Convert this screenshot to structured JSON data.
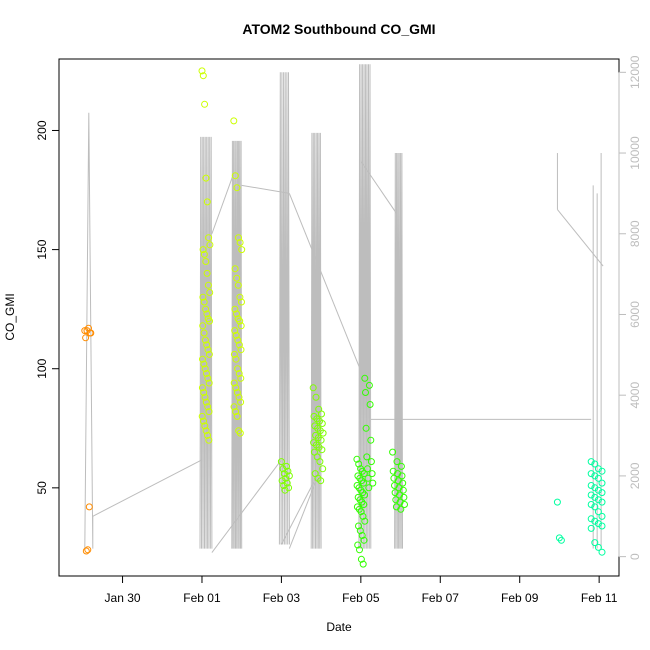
{
  "chart_data": {
    "type": "scatter",
    "title": "ATOM2 Southbound CO_GMI",
    "xlabel": "Date",
    "ylabel": "CO_GMI",
    "x_axis": {
      "ticks": [
        {
          "label": "Jan 30",
          "day": 30.0
        },
        {
          "label": "Feb 01",
          "day": 32.0
        },
        {
          "label": "Feb 03",
          "day": 34.0
        },
        {
          "label": "Feb 05",
          "day": 36.0
        },
        {
          "label": "Feb 07",
          "day": 38.0
        },
        {
          "label": "Feb 09",
          "day": 40.0
        },
        {
          "label": "Feb 11",
          "day": 42.0
        }
      ]
    },
    "y_left": {
      "ticks": [
        50,
        100,
        150,
        200
      ],
      "range": [
        13,
        230
      ]
    },
    "y_right": {
      "ticks": [
        0,
        2000,
        4000,
        6000,
        8000,
        10000,
        12000
      ],
      "range": [
        -480,
        12330
      ],
      "color": "#bdbdbd"
    },
    "groups": [
      {
        "color": "#ff8c00",
        "x_range": [
          29.05,
          29.2
        ],
        "values": [
          116,
          115,
          117,
          116,
          113,
          115,
          42,
          24,
          23.5
        ]
      },
      {
        "color": "#ccff00",
        "x_range": [
          32.0,
          32.2
        ],
        "values": [
          225,
          223,
          211,
          180,
          170,
          155,
          152,
          150,
          148,
          145,
          140,
          135,
          132,
          130,
          128,
          125,
          123,
          121,
          120,
          118,
          115,
          112,
          110,
          108,
          106,
          104,
          102,
          100,
          98,
          96,
          94,
          92,
          90,
          88,
          86,
          84,
          82,
          80,
          78,
          76,
          74,
          72,
          70
        ]
      },
      {
        "color": "#ccff00",
        "x_range": [
          32.8,
          33.0
        ],
        "values": [
          204,
          181,
          176,
          155,
          153,
          150,
          142,
          138,
          135,
          130,
          128,
          125,
          123,
          121,
          120,
          118,
          116,
          114,
          112,
          110,
          108,
          106,
          104,
          100,
          98,
          96,
          94,
          92,
          90,
          88,
          86,
          84,
          82,
          80,
          74,
          73
        ]
      },
      {
        "color": "#7fff00",
        "x_range": [
          34.0,
          34.2
        ],
        "values": [
          61,
          59,
          58,
          57,
          56,
          55,
          54,
          53,
          52,
          51,
          50,
          49
        ]
      },
      {
        "color": "#7fff00",
        "x_range": [
          34.8,
          35.05
        ],
        "values": [
          92,
          88,
          83,
          81,
          80,
          79,
          78,
          77,
          76,
          75,
          74,
          73,
          72,
          71,
          70,
          69,
          68,
          67,
          66,
          65,
          63,
          61,
          58,
          56,
          54,
          53
        ]
      },
      {
        "color": "#32ff00",
        "x_range": [
          35.9,
          36.1
        ],
        "values": [
          62,
          60,
          58,
          57,
          56,
          55,
          54,
          53,
          52,
          51,
          50,
          49,
          48,
          47,
          46,
          45,
          44,
          43,
          42,
          41,
          40,
          38,
          36,
          34,
          32,
          30,
          28,
          26,
          24,
          20,
          18
        ]
      },
      {
        "color": "#32ff00",
        "x_range": [
          36.1,
          36.3
        ],
        "values": [
          96,
          93,
          90,
          85,
          75,
          70,
          63,
          61,
          58,
          56,
          54,
          52,
          50
        ]
      },
      {
        "color": "#32ff00",
        "x_range": [
          36.8,
          37.1
        ],
        "values": [
          65,
          61,
          59,
          57,
          56,
          55,
          54,
          53,
          52,
          51,
          50,
          49,
          48,
          47,
          46,
          45,
          44,
          43,
          42,
          41
        ]
      },
      {
        "color": "#00ffa0",
        "x_range": [
          40.95,
          41.05
        ],
        "values": [
          44,
          29,
          28
        ]
      },
      {
        "color": "#00ffa0",
        "x_range": [
          41.8,
          42.15
        ],
        "values": [
          61,
          60,
          58,
          57,
          56,
          55,
          54,
          52,
          51,
          50,
          49,
          48,
          47,
          46,
          45,
          44,
          43,
          42,
          40,
          38,
          37,
          36,
          35,
          34,
          33,
          27,
          25,
          23
        ]
      }
    ],
    "altitude_series": {
      "color": "#bdbdbd",
      "axis": "right",
      "segments": [
        {
          "start": 29.05,
          "end": 29.25,
          "cycles": 1,
          "min": 200,
          "max": 11000,
          "tail": [
            29.25,
            1000
          ]
        },
        {
          "start": 31.95,
          "end": 32.25,
          "cycles": 8,
          "min": 200,
          "max": 10400
        },
        {
          "start": 32.75,
          "end": 33.0,
          "cycles": 8,
          "min": 200,
          "max": 10300
        },
        {
          "start": 33.95,
          "end": 34.2,
          "cycles": 6,
          "min": 300,
          "max": 12000
        },
        {
          "start": 34.75,
          "end": 35.0,
          "cycles": 7,
          "min": 200,
          "max": 10500
        },
        {
          "start": 35.95,
          "end": 36.25,
          "cycles": 8,
          "min": 200,
          "max": 12200
        },
        {
          "start": 36.85,
          "end": 37.05,
          "cycles": 6,
          "min": 200,
          "max": 10000
        }
      ],
      "connectors": [
        [
          [
            29.25,
            1000
          ],
          [
            32.0,
            2400
          ]
        ],
        [
          [
            32.25,
            8000
          ],
          [
            32.8,
            9500
          ]
        ],
        [
          [
            32.25,
            100
          ],
          [
            34.0,
            2400
          ]
        ],
        [
          [
            33.0,
            9200
          ],
          [
            34.2,
            9000
          ]
        ],
        [
          [
            34.2,
            9000
          ],
          [
            36.0,
            4600
          ]
        ],
        [
          [
            34.2,
            200
          ],
          [
            35.0,
            2200
          ]
        ],
        [
          [
            35.0,
            2200
          ],
          [
            34.0,
            300
          ]
        ],
        [
          [
            36.0,
            9800
          ],
          [
            36.9,
            8500
          ]
        ],
        [
          [
            36.25,
            3400
          ],
          [
            41.8,
            3400
          ]
        ],
        [
          [
            40.95,
            8600
          ],
          [
            42.1,
            7200
          ]
        ]
      ],
      "extra_spikes": [
        {
          "x": 40.95,
          "min": 8600,
          "max": 10000
        },
        {
          "x": 41.85,
          "min": 200,
          "max": 9200
        },
        {
          "x": 41.95,
          "min": 200,
          "max": 9000
        },
        {
          "x": 42.05,
          "min": 200,
          "max": 10000
        }
      ]
    }
  }
}
